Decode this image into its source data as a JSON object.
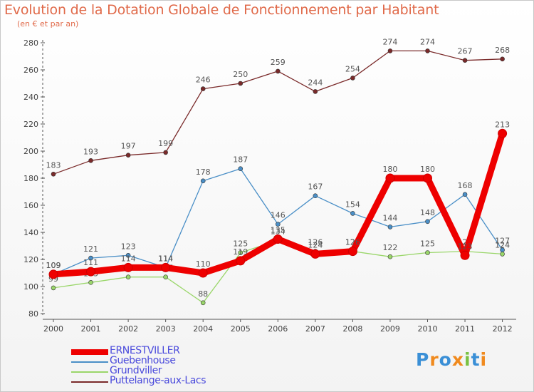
{
  "title": "Evolution de la Dotation Globale de Fonctionnement par Habitant",
  "subtitle": "(en € et par an)",
  "colors": {
    "title": "#e06a4a",
    "axis": "#555555",
    "tick_label": "#444444",
    "value_label": "#555555",
    "legend_text": "#4a4adc"
  },
  "chart_data": {
    "type": "line",
    "categories": [
      "2000",
      "2001",
      "2002",
      "2003",
      "2004",
      "2005",
      "2006",
      "2007",
      "2008",
      "2009",
      "2010",
      "2011",
      "2012"
    ],
    "ylim": [
      80,
      280
    ],
    "yticks": [
      80,
      100,
      120,
      140,
      160,
      180,
      200,
      220,
      240,
      260,
      280
    ],
    "xlabel": "",
    "ylabel": "",
    "series": [
      {
        "name": "Puttelange-aux-Lacs",
        "color": "#7a2a2a",
        "values": [
          183,
          193,
          197,
          199,
          246,
          250,
          259,
          244,
          254,
          274,
          274,
          267,
          268
        ]
      },
      {
        "name": "Guebenhouse",
        "color": "#4a8fc7",
        "values": [
          109,
          121,
          123,
          114,
          178,
          187,
          146,
          167,
          154,
          144,
          148,
          168,
          127
        ]
      },
      {
        "name": "Grundviller",
        "color": "#9ad66a",
        "values": [
          99,
          103,
          107,
          107,
          88,
          125,
          134,
          126,
          126,
          122,
          125,
          126,
          124
        ]
      },
      {
        "name": "ERNESTVILLER",
        "color": "#ee0000",
        "values": [
          109,
          111,
          114,
          114,
          110,
          119,
          135,
          124,
          126,
          180,
          180,
          123,
          213
        ]
      }
    ]
  },
  "legend": [
    {
      "label": "ERNESTVILLER",
      "color": "#ee0000"
    },
    {
      "label": "Guebenhouse",
      "color": "#4a8fc7"
    },
    {
      "label": "Grundviller",
      "color": "#9ad66a"
    },
    {
      "label": "Puttelange-aux-Lacs",
      "color": "#7a2a2a"
    }
  ],
  "logo": {
    "text": "Proxiti",
    "letter_colors": [
      "#3a8fd6",
      "#f08a1e",
      "#3a8fd6",
      "#f08a1e",
      "#7ac143",
      "#3a8fd6",
      "#f08a1e"
    ]
  }
}
